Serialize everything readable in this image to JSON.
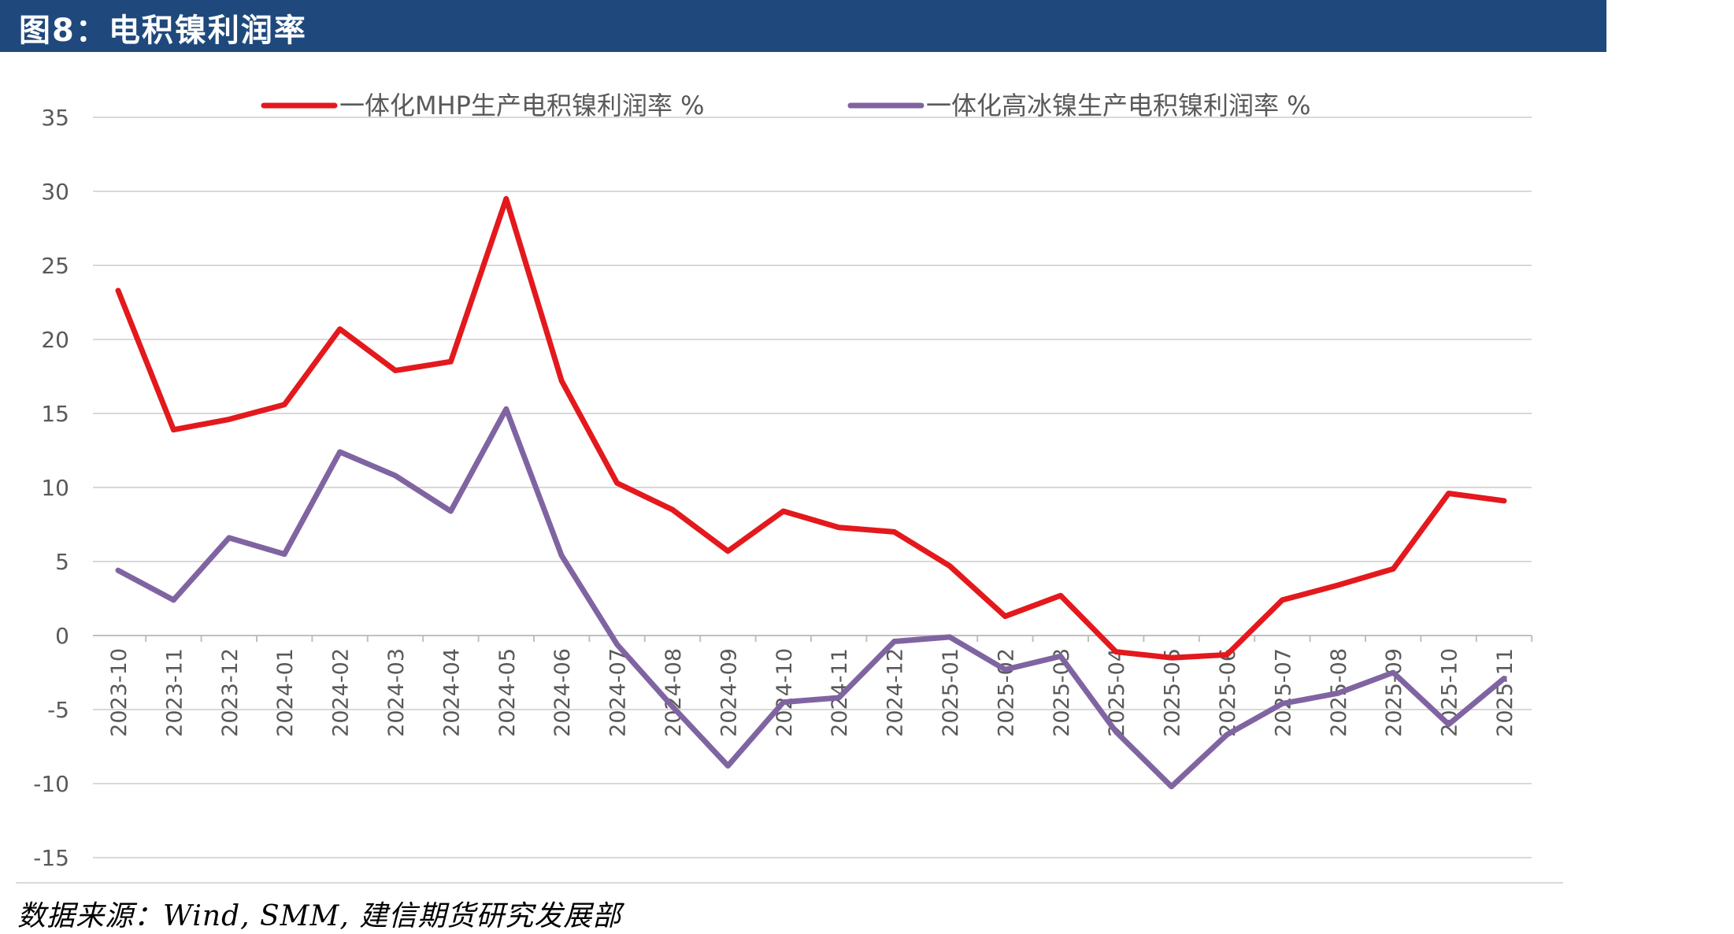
{
  "header": {
    "title": "图8：电积镍利润率"
  },
  "footer": {
    "source": "数据来源：Wind, SMM, 建信期货研究发展部"
  },
  "colors": {
    "header_bg": "#1F497D",
    "series_1": "#E3191D",
    "series_2": "#8064A2",
    "grid": "#D9D9D9",
    "axis_text": "#595959"
  },
  "chart_data": {
    "type": "line",
    "x": [
      "2023-10",
      "2023-11",
      "2023-12",
      "2024-01",
      "2024-02",
      "2024-03",
      "2024-04",
      "2024-05",
      "2024-06",
      "2024-07",
      "2024-08",
      "2024-09",
      "2024-10",
      "2024-11",
      "2024-12",
      "2025-01",
      "2025-02",
      "2025-03",
      "2025-04",
      "2025-05",
      "2025-06",
      "2025-07",
      "2025-08",
      "2025-09",
      "2025-10",
      "2025-11"
    ],
    "series": [
      {
        "name": "一体化MHP生产电积镍利润率 %",
        "color": "#E3191D",
        "values": [
          23.3,
          13.9,
          14.6,
          15.6,
          20.7,
          17.9,
          18.5,
          29.5,
          17.2,
          10.3,
          8.5,
          5.7,
          8.4,
          7.3,
          7.0,
          4.7,
          1.3,
          2.7,
          -1.1,
          -1.5,
          -1.3,
          2.4,
          3.4,
          4.5,
          9.6,
          9.1
        ]
      },
      {
        "name": "一体化高冰镍生产电积镍利润率 %",
        "color": "#8064A2",
        "values": [
          4.4,
          2.4,
          6.6,
          5.5,
          12.4,
          10.8,
          8.4,
          15.3,
          5.4,
          -0.6,
          -4.8,
          -8.8,
          -4.5,
          -4.2,
          -0.4,
          -0.1,
          -2.3,
          -1.4,
          -6.5,
          -10.2,
          -6.7,
          -4.6,
          -3.9,
          -2.5,
          -6.0,
          -2.9
        ]
      }
    ],
    "yticks": [
      -15,
      -10,
      -5,
      0,
      5,
      10,
      15,
      20,
      25,
      30,
      35
    ],
    "ylim": [
      -15,
      35
    ],
    "grid": true,
    "legend_position": "top"
  }
}
